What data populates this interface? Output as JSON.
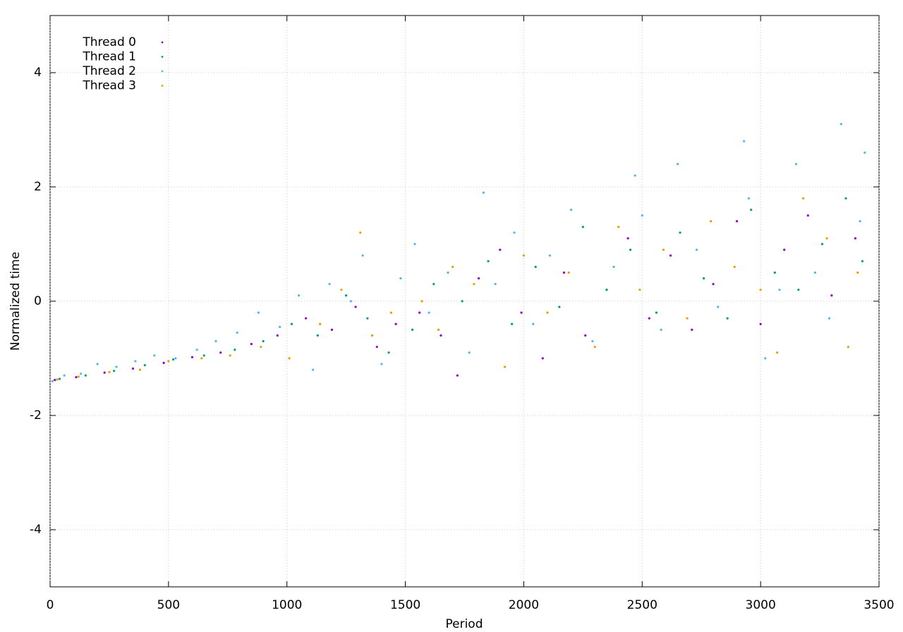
{
  "chart_data": {
    "type": "scatter",
    "xlabel": "Period",
    "ylabel": "Normalized time",
    "xlim": [
      0,
      3500
    ],
    "xticks": [
      0,
      500,
      1000,
      1500,
      2000,
      2500,
      3000,
      3500
    ],
    "ylim": [
      -5,
      5
    ],
    "yticks": [
      -4,
      -2,
      0,
      2,
      4
    ],
    "grid": true,
    "legend": "top-left",
    "series": [
      {
        "name": "Thread 0",
        "color": "#9400d3",
        "x": [
          20,
          110,
          230,
          350,
          480,
          600,
          720,
          850,
          960,
          1080,
          1190,
          1290,
          1380,
          1460,
          1560,
          1650,
          1720,
          1810,
          1900,
          1990,
          2080,
          2170,
          2260,
          2350,
          2440,
          2530,
          2620,
          2710,
          2800,
          2900,
          3000,
          3100,
          3200,
          3300,
          3400
        ],
        "values": [
          -1.38,
          -1.33,
          -1.25,
          -1.18,
          -1.08,
          -0.98,
          -0.9,
          -0.75,
          -0.6,
          -0.3,
          -0.5,
          -0.1,
          -0.8,
          -0.4,
          -0.2,
          -0.6,
          -1.3,
          0.4,
          0.9,
          -0.2,
          -1.0,
          0.5,
          -0.6,
          0.2,
          1.1,
          -0.3,
          0.8,
          -0.5,
          0.3,
          1.4,
          -0.4,
          0.9,
          1.5,
          0.1,
          1.1
        ]
      },
      {
        "name": "Thread 1",
        "color": "#009e73",
        "x": [
          40,
          150,
          270,
          400,
          520,
          650,
          780,
          900,
          1020,
          1130,
          1250,
          1340,
          1430,
          1530,
          1620,
          1740,
          1850,
          1950,
          2050,
          2150,
          2250,
          2350,
          2450,
          2560,
          2660,
          2760,
          2860,
          2960,
          3060,
          3160,
          3260,
          3360,
          3430
        ],
        "values": [
          -1.36,
          -1.3,
          -1.22,
          -1.12,
          -1.02,
          -0.95,
          -0.85,
          -0.7,
          -0.4,
          -0.6,
          0.1,
          -0.3,
          -0.9,
          -0.5,
          0.3,
          0.0,
          0.7,
          -0.4,
          0.6,
          -0.1,
          1.3,
          0.2,
          0.9,
          -0.2,
          1.2,
          0.4,
          -0.3,
          1.6,
          0.5,
          0.2,
          1.0,
          1.8,
          0.7
        ]
      },
      {
        "name": "Thread 2",
        "color": "#56b4e9",
        "x": [
          10,
          60,
          130,
          200,
          280,
          360,
          440,
          530,
          620,
          700,
          790,
          880,
          970,
          1050,
          1110,
          1180,
          1270,
          1320,
          1400,
          1480,
          1540,
          1600,
          1680,
          1770,
          1830,
          1880,
          1960,
          2040,
          2110,
          2200,
          2290,
          2380,
          2470,
          2500,
          2580,
          2650,
          2730,
          2820,
          2930,
          2950,
          3020,
          3080,
          3150,
          3230,
          3290,
          3340,
          3420,
          3440
        ],
        "values": [
          -1.4,
          -1.3,
          -1.27,
          -1.1,
          -1.15,
          -1.05,
          -0.95,
          -1.0,
          -0.85,
          -0.7,
          -0.55,
          -0.2,
          -0.45,
          0.1,
          -1.2,
          0.3,
          0.0,
          0.8,
          -1.1,
          0.4,
          1.0,
          -0.2,
          0.5,
          -0.9,
          1.9,
          0.3,
          1.2,
          -0.4,
          0.8,
          1.6,
          -0.7,
          0.6,
          2.2,
          1.5,
          -0.5,
          2.4,
          0.9,
          -0.1,
          2.8,
          1.8,
          -1.0,
          0.2,
          2.4,
          0.5,
          -0.3,
          3.1,
          1.4,
          2.6
        ]
      },
      {
        "name": "Thread 3",
        "color": "#e69f00",
        "x": [
          30,
          120,
          250,
          380,
          500,
          640,
          760,
          890,
          1010,
          1140,
          1230,
          1310,
          1360,
          1440,
          1570,
          1640,
          1700,
          1790,
          1920,
          2000,
          2100,
          2190,
          2300,
          2400,
          2490,
          2590,
          2690,
          2790,
          2890,
          3000,
          3070,
          3180,
          3280,
          3370,
          3410
        ],
        "values": [
          -1.37,
          -1.32,
          -1.24,
          -1.2,
          -1.05,
          -1.0,
          -0.95,
          -0.8,
          -1.0,
          -0.4,
          0.2,
          1.2,
          -0.6,
          -0.2,
          0.0,
          -0.5,
          0.6,
          0.3,
          -1.15,
          0.8,
          -0.2,
          0.5,
          -0.8,
          1.3,
          0.2,
          0.9,
          -0.3,
          1.4,
          0.6,
          0.2,
          -0.9,
          1.8,
          1.1,
          -0.8,
          0.5
        ]
      }
    ]
  }
}
